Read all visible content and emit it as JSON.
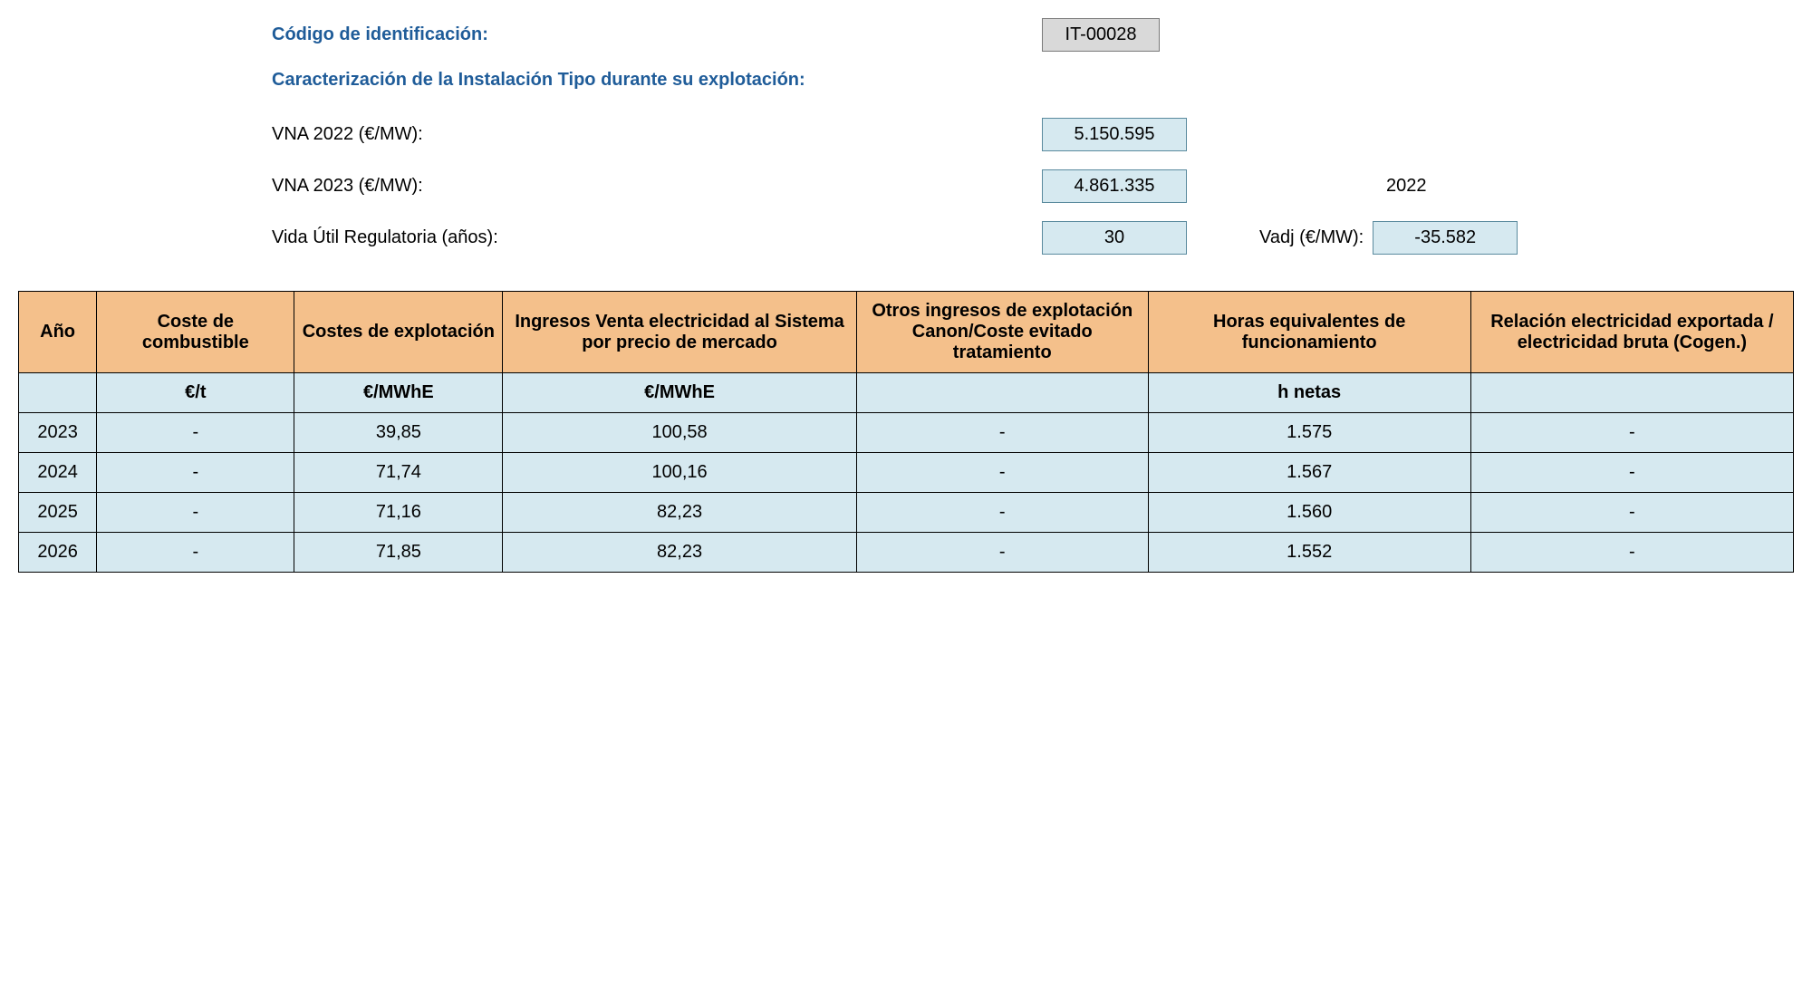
{
  "header": {
    "code_label": "Código de identificación:",
    "code_value": "IT-00028",
    "section_title": "Caracterización de la Instalación Tipo durante su explotación:",
    "vna_2022_label": "VNA 2022 (€/MW):",
    "vna_2022_value": "5.150.595",
    "vna_2023_label": "VNA 2023 (€/MW):",
    "vna_2023_value": "4.861.335",
    "vida_util_label": "Vida Útil Regulatoria (años):",
    "vida_util_value": "30",
    "year_ref": "2022",
    "vadj_label": "Vadj (€/MW):",
    "vadj_value": "-35.582"
  },
  "table": {
    "columns": [
      "Año",
      "Coste de combustible",
      "Costes de explotación",
      "Ingresos Venta electricidad al Sistema por precio de mercado",
      "Otros ingresos de explotación Canon/Coste evitado tratamiento",
      "Horas equivalentes de funcionamiento",
      "Relación electricidad exportada / electricidad bruta (Cogen.)"
    ],
    "units": [
      "",
      "€/t",
      "€/MWhE",
      "€/MWhE",
      "",
      "h netas",
      ""
    ],
    "rows": [
      {
        "year": "2023",
        "fuel": "-",
        "opex": "39,85",
        "income": "100,58",
        "other": "-",
        "hours": "1.575",
        "ratio": "-"
      },
      {
        "year": "2024",
        "fuel": "-",
        "opex": "71,74",
        "income": "100,16",
        "other": "-",
        "hours": "1.567",
        "ratio": "-"
      },
      {
        "year": "2025",
        "fuel": "-",
        "opex": "71,16",
        "income": "82,23",
        "other": "-",
        "hours": "1.560",
        "ratio": "-"
      },
      {
        "year": "2026",
        "fuel": "-",
        "opex": "71,85",
        "income": "82,23",
        "other": "-",
        "hours": "1.552",
        "ratio": "-"
      }
    ],
    "header_bg": "#f4c08b",
    "cell_bg": "#d6e9f0",
    "border_color": "#000000"
  }
}
